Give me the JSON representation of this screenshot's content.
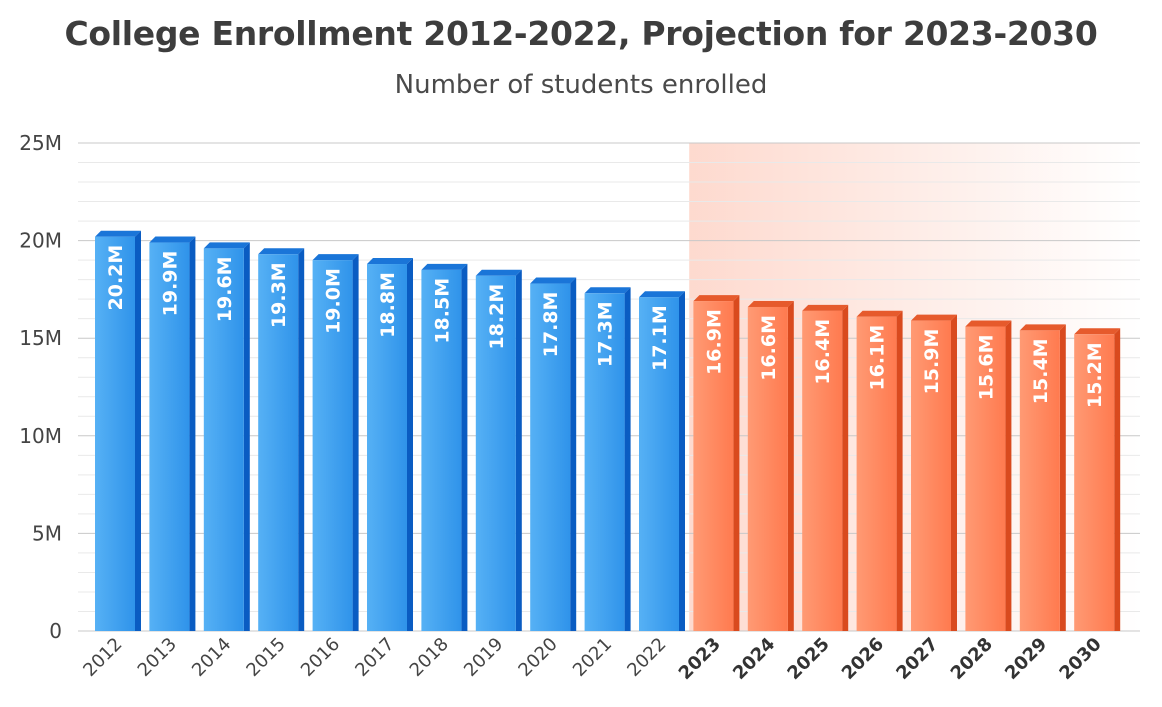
{
  "colors": {
    "actual_front": "#2f93ea",
    "actual_side": "#0a5cc2",
    "actual_top": "#1a75d8",
    "projected_front": "#ff7a4f",
    "projected_side": "#d94a1e",
    "projected_top": "#e65a2c",
    "projection_shade": "#fdd3c6",
    "grid_major": "#c8c8c8",
    "grid_minor": "#e9e9e9"
  },
  "chart_data": {
    "type": "bar",
    "title": "College Enrollment 2012-2022, Projection for 2023-2030",
    "subtitle": "Number of students enrolled",
    "ylim": [
      0,
      25
    ],
    "yticks": [
      0,
      5,
      10,
      15,
      20,
      25
    ],
    "ytick_labels": [
      "0",
      "5M",
      "10M",
      "15M",
      "20M",
      "25M"
    ],
    "categories": [
      "2012",
      "2013",
      "2014",
      "2015",
      "2016",
      "2017",
      "2018",
      "2019",
      "2020",
      "2021",
      "2022",
      "2023",
      "2024",
      "2025",
      "2026",
      "2027",
      "2028",
      "2029",
      "2030"
    ],
    "values": [
      20.2,
      19.9,
      19.6,
      19.3,
      19.0,
      18.8,
      18.5,
      18.2,
      17.8,
      17.3,
      17.1,
      16.9,
      16.6,
      16.4,
      16.1,
      15.9,
      15.6,
      15.4,
      15.2
    ],
    "data_labels": [
      "20.2M",
      "19.9M",
      "19.6M",
      "19.3M",
      "19.0M",
      "18.8M",
      "18.5M",
      "18.2M",
      "17.8M",
      "17.3M",
      "17.1M",
      "16.9M",
      "16.6M",
      "16.4M",
      "16.1M",
      "15.9M",
      "15.6M",
      "15.4M",
      "15.2M"
    ],
    "projection_start_index": 11,
    "grid": true,
    "legend": "none"
  }
}
